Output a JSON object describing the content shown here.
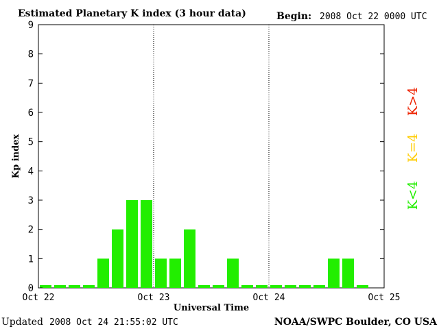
{
  "header": {
    "title": "Estimated Planetary K index (3 hour data)",
    "begin_label": "Begin:",
    "begin_value": "2008 Oct 22 0000 UTC"
  },
  "footer": {
    "updated_label": "Updated",
    "updated_value": "2008 Oct 24 21:55:02 UTC",
    "source": "NOAA/SWPC Boulder, CO USA"
  },
  "legend": {
    "low": {
      "text": "K<4",
      "color": "#22ee00"
    },
    "mid": {
      "text": "K=4",
      "color": "#ffcc00"
    },
    "high": {
      "text": "K>4",
      "color": "#ee2200"
    }
  },
  "chart_data": {
    "type": "bar",
    "title": "Estimated Planetary K index (3 hour data)",
    "xlabel": "Universal Time",
    "ylabel": "Kp index",
    "ylim": [
      0,
      9
    ],
    "yticks": [
      "0",
      "1",
      "2",
      "3",
      "4",
      "5",
      "6",
      "7",
      "8",
      "9"
    ],
    "xticks": [
      "Oct 22",
      "Oct 23",
      "Oct 24",
      "Oct 25"
    ],
    "day_separators": [
      "Oct 23",
      "Oct 24"
    ],
    "bar_color": "#22ee00",
    "bars_per_day": 8,
    "values": [
      0,
      0,
      0,
      0,
      1,
      2,
      3,
      3,
      1,
      1,
      2,
      0,
      0,
      1,
      0,
      0,
      0,
      0,
      0,
      0,
      1,
      1,
      0
    ]
  }
}
